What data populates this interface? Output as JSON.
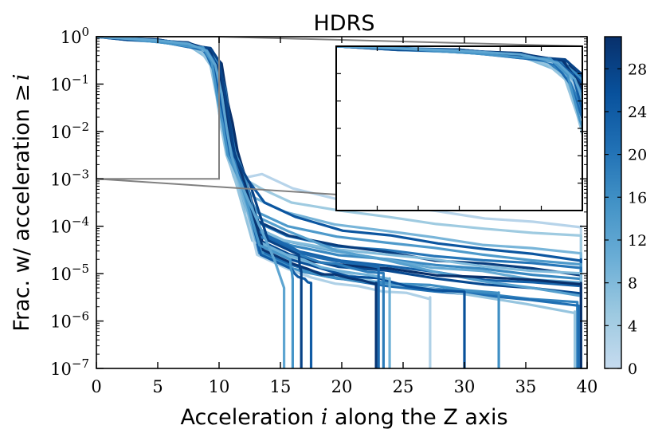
{
  "chart_data": {
    "type": "line",
    "title": "HDRS",
    "xlabel_parts": {
      "pre": "Acceleration ",
      "var": "i",
      "post": " along the Z axis"
    },
    "ylabel_parts": {
      "pre": "Frac. w/ acceleration ",
      "op": "≥",
      "var": "i"
    },
    "xlim": [
      0,
      40
    ],
    "ylim_log10": [
      -7,
      0
    ],
    "y_scale": "log",
    "xticks": [
      0,
      5,
      10,
      15,
      20,
      25,
      30,
      35,
      40
    ],
    "yticks": [
      {
        "base": "10",
        "exp": "0"
      },
      {
        "base": "10",
        "exp": "−1"
      },
      {
        "base": "10",
        "exp": "−2"
      },
      {
        "base": "10",
        "exp": "−3"
      },
      {
        "base": "10",
        "exp": "−4"
      },
      {
        "base": "10",
        "exp": "−5"
      },
      {
        "base": "10",
        "exp": "−6"
      },
      {
        "base": "10",
        "exp": "−7"
      }
    ],
    "inset": {
      "source_region": {
        "x": [
          0,
          10
        ],
        "y_log10": [
          -3,
          0
        ]
      },
      "placement": "top-right"
    },
    "colorbar": {
      "range": [
        0,
        31
      ],
      "ticks": [
        "0",
        "4",
        "8",
        "12",
        "16",
        "20",
        "24",
        "28"
      ],
      "tick_values": [
        0,
        4,
        8,
        12,
        16,
        20,
        24,
        28
      ],
      "colors": [
        "#c6dbef",
        "#9ecae1",
        "#6baed6",
        "#4292c6",
        "#2171b5",
        "#08519c",
        "#08306b"
      ]
    },
    "series": [
      {
        "c": 2,
        "kx": 11.0,
        "dr": 1.0,
        "mid": -3.2,
        "end_v": -4.0,
        "end_x": 39.5
      },
      {
        "c": 5,
        "kx": 10.8,
        "dr": 1.1,
        "mid": -3.5,
        "end_v": -4.2,
        "end_x": 39.5
      },
      {
        "c": 9,
        "kx": 10.5,
        "dr": 0.9,
        "mid": -3.7,
        "end_v": -4.6,
        "end_x": 39.5
      },
      {
        "c": 25,
        "kx": 11.0,
        "dr": 1.2,
        "mid": -3.8,
        "end_v": -4.7,
        "end_x": 39.5
      },
      {
        "c": 14,
        "kx": 10.6,
        "dr": 1.0,
        "mid": -4.0,
        "end_v": -4.8,
        "end_x": 39.5
      },
      {
        "c": 20,
        "kx": 10.4,
        "dr": 1.1,
        "mid": -4.2,
        "end_v": -4.9,
        "end_x": 39.5
      },
      {
        "c": 29,
        "kx": 10.8,
        "dr": 0.9,
        "mid": -4.2,
        "end_v": -5.0,
        "end_x": 39.5
      },
      {
        "c": 17,
        "kx": 10.5,
        "dr": 1.3,
        "mid": -4.4,
        "end_v": -5.1,
        "end_x": 39.5
      },
      {
        "c": 11,
        "kx": 10.2,
        "dr": 1.0,
        "mid": -4.3,
        "end_v": -5.2,
        "end_x": 39.5
      },
      {
        "c": 23,
        "kx": 10.9,
        "dr": 1.1,
        "mid": -4.5,
        "end_v": -5.3,
        "end_x": 39.5
      },
      {
        "c": 27,
        "kx": 10.6,
        "dr": 1.2,
        "mid": -4.6,
        "end_v": -5.4,
        "end_x": 39.5
      },
      {
        "c": 8,
        "kx": 10.3,
        "dr": 1.0,
        "mid": -4.3,
        "end_v": -5.0,
        "end_x": 39.5
      },
      {
        "c": 13,
        "kx": 10.7,
        "dr": 0.9,
        "mid": -4.1,
        "end_v": -5.5,
        "end_x": 39.5
      },
      {
        "c": 31,
        "kx": 11.1,
        "dr": 1.0,
        "mid": -4.7,
        "end_v": -5.2,
        "end_x": 39.5
      },
      {
        "c": 18,
        "kx": 10.4,
        "dr": 1.3,
        "mid": -4.9,
        "end_v": -5.6,
        "end_x": 39.2
      },
      {
        "c": 21,
        "kx": 10.6,
        "dr": 1.1,
        "mid": -4.8,
        "end_v": -5.7,
        "end_x": 39.3
      },
      {
        "c": 6,
        "kx": 10.2,
        "dr": 1.0,
        "mid": -4.6,
        "end_v": -5.8,
        "end_x": 39.0
      },
      {
        "c": 16,
        "kx": 10.9,
        "dr": 1.2,
        "mid": -4.9,
        "end_v": -5.4,
        "end_x": 32.8
      },
      {
        "c": 26,
        "kx": 10.8,
        "dr": 1.0,
        "mid": -4.7,
        "end_v": -5.4,
        "end_x": 30.0
      },
      {
        "c": 3,
        "kx": 10.5,
        "dr": 1.1,
        "mid": -4.9,
        "end_v": -5.5,
        "end_x": 27.2
      },
      {
        "c": 10,
        "kx": 10.6,
        "dr": 0.9,
        "mid": -4.6,
        "end_v": -5.1,
        "end_x": 23.9
      },
      {
        "c": 19,
        "kx": 10.7,
        "dr": 1.0,
        "mid": -4.5,
        "end_v": -5.0,
        "end_x": 23.4
      },
      {
        "c": 22,
        "kx": 10.4,
        "dr": 1.2,
        "mid": -4.4,
        "end_v": -4.9,
        "end_x": 23.0
      },
      {
        "c": 30,
        "kx": 10.8,
        "dr": 1.3,
        "mid": -4.8,
        "end_v": -5.2,
        "end_x": 22.8
      },
      {
        "c": 24,
        "kx": 10.5,
        "dr": 1.4,
        "mid": -4.9,
        "end_v": -5.2,
        "end_x": 17.5
      },
      {
        "c": 28,
        "kx": 10.9,
        "dr": 1.6,
        "mid": -4.6,
        "end_v": -5.0,
        "end_x": 16.7
      },
      {
        "c": 15,
        "kx": 10.3,
        "dr": 1.5,
        "mid": -4.7,
        "end_v": -5.1,
        "end_x": 16.0
      },
      {
        "c": 12,
        "kx": 10.6,
        "dr": 1.7,
        "mid": -4.7,
        "end_v": -5.3,
        "end_x": 15.3
      }
    ]
  }
}
